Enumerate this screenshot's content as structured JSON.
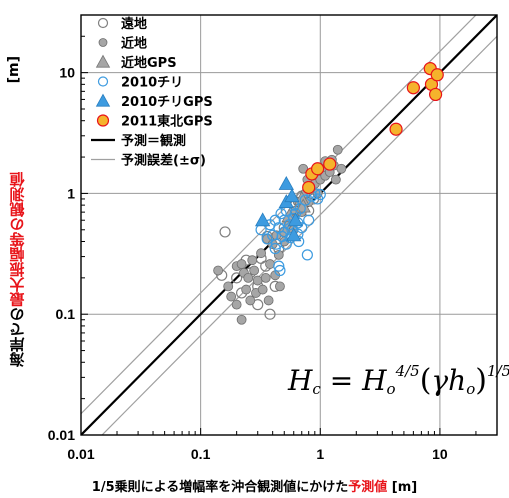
{
  "chart_data": {
    "type": "scatter",
    "scale": "log-log",
    "xlim": [
      0.01,
      30
    ],
    "ylim": [
      0.01,
      30
    ],
    "x_ticks": [
      "0.01",
      "0.1",
      "1",
      "10"
    ],
    "y_ticks": [
      "0.01",
      "0.1",
      "1",
      "10"
    ],
    "y_unit": "[m]",
    "ylabel": {
      "pre": "海岸での",
      "red": "最大振幅等の観測値",
      "post": ""
    },
    "xlabel": {
      "pre": "1/5乗則による増幅率を沖合観測値にかけた",
      "red": "予測値",
      "post": " [m]"
    },
    "formula": {
      "H": "H",
      "c": "c",
      "eq": "=",
      "Ho": "H",
      "o1": "o",
      "e1": "4/5",
      "gamma": "γ",
      "h": "h",
      "o2": "o",
      "e2": "1/5"
    },
    "legend": [
      {
        "key": "far",
        "label": "遠地",
        "marker": "circle-open",
        "color": "#808080"
      },
      {
        "key": "near",
        "label": "近地",
        "marker": "circle-filled",
        "color": "#a6a6a6"
      },
      {
        "key": "near_gps",
        "label": "近地GPS",
        "marker": "triangle",
        "color": "#a6a6a6"
      },
      {
        "key": "chile",
        "label": "2010チリ",
        "marker": "circle-open",
        "color": "#3d9be0"
      },
      {
        "key": "chile_gps",
        "label": "2010チリGPS",
        "marker": "triangle",
        "color": "#3d9be0"
      },
      {
        "key": "tohoku",
        "label": "2011東北GPS",
        "marker": "circle-filled",
        "color": "#f5b32c"
      },
      {
        "key": "line",
        "label": "予測＝観測",
        "marker": "line-thick",
        "color": "#000000"
      },
      {
        "key": "err",
        "label": "予測誤差(±σ)",
        "marker": "line-thin",
        "color": "#a0a0a0"
      }
    ],
    "band_factor": 1.5,
    "series": [
      {
        "key": "far",
        "points": [
          [
            0.16,
            0.48
          ],
          [
            0.15,
            0.21
          ],
          [
            0.2,
            0.2
          ],
          [
            0.22,
            0.15
          ],
          [
            0.24,
            0.28
          ],
          [
            0.26,
            0.22
          ],
          [
            0.3,
            0.12
          ],
          [
            0.3,
            0.17
          ],
          [
            0.32,
            0.29
          ],
          [
            0.35,
            0.25
          ],
          [
            0.36,
            0.44
          ],
          [
            0.38,
            0.1
          ],
          [
            0.42,
            0.17
          ],
          [
            0.45,
            0.35
          ],
          [
            0.5,
            0.52
          ],
          [
            0.55,
            0.6
          ],
          [
            0.62,
            0.8
          ],
          [
            0.7,
            0.95
          ],
          [
            0.8,
            0.72
          ],
          [
            0.88,
            0.9
          ]
        ]
      },
      {
        "key": "near",
        "points": [
          [
            0.14,
            0.23
          ],
          [
            0.17,
            0.17
          ],
          [
            0.18,
            0.14
          ],
          [
            0.2,
            0.12
          ],
          [
            0.2,
            0.25
          ],
          [
            0.22,
            0.09
          ],
          [
            0.22,
            0.26
          ],
          [
            0.23,
            0.22
          ],
          [
            0.24,
            0.16
          ],
          [
            0.25,
            0.2
          ],
          [
            0.26,
            0.13
          ],
          [
            0.27,
            0.28
          ],
          [
            0.28,
            0.23
          ],
          [
            0.29,
            0.15
          ],
          [
            0.3,
            0.19
          ],
          [
            0.32,
            0.32
          ],
          [
            0.33,
            0.16
          ],
          [
            0.35,
            0.2
          ],
          [
            0.36,
            0.42
          ],
          [
            0.37,
            0.13
          ],
          [
            0.38,
            0.26
          ],
          [
            0.4,
            0.38
          ],
          [
            0.42,
            0.21
          ],
          [
            0.43,
            0.45
          ],
          [
            0.45,
            0.31
          ],
          [
            0.46,
            0.17
          ],
          [
            0.5,
            0.48
          ],
          [
            0.5,
            0.4
          ],
          [
            0.55,
            0.55
          ],
          [
            0.58,
            0.62
          ],
          [
            0.6,
            0.5
          ],
          [
            0.62,
            0.72
          ],
          [
            0.65,
            0.85
          ],
          [
            0.7,
            0.7
          ],
          [
            0.72,
            1.6
          ],
          [
            0.75,
            1.0
          ],
          [
            0.78,
            1.3
          ],
          [
            0.8,
            0.85
          ],
          [
            0.82,
            1.1
          ],
          [
            0.88,
            1.5
          ],
          [
            0.9,
            1.2
          ],
          [
            0.95,
            1.0
          ],
          [
            1.0,
            1.3
          ],
          [
            1.05,
            1.6
          ],
          [
            1.1,
            1.4
          ],
          [
            1.2,
            1.5
          ],
          [
            1.3,
            1.7
          ],
          [
            1.35,
            1.3
          ],
          [
            1.4,
            2.3
          ],
          [
            1.5,
            1.6
          ],
          [
            1.1,
            1.85
          ],
          [
            1.25,
            1.9
          ]
        ]
      },
      {
        "key": "near_gps",
        "points": [
          [
            0.55,
            0.65
          ],
          [
            0.7,
            0.9
          ],
          [
            0.72,
            0.78
          ]
        ]
      },
      {
        "key": "chile",
        "points": [
          [
            0.32,
            0.5
          ],
          [
            0.36,
            0.42
          ],
          [
            0.38,
            0.55
          ],
          [
            0.4,
            0.45
          ],
          [
            0.42,
            0.6
          ],
          [
            0.42,
            0.35
          ],
          [
            0.43,
            0.38
          ],
          [
            0.45,
            0.52
          ],
          [
            0.45,
            0.25
          ],
          [
            0.46,
            0.23
          ],
          [
            0.47,
            0.68
          ],
          [
            0.48,
            0.44
          ],
          [
            0.5,
            0.6
          ],
          [
            0.5,
            0.48
          ],
          [
            0.52,
            0.72
          ],
          [
            0.52,
            0.38
          ],
          [
            0.55,
            0.55
          ],
          [
            0.56,
            0.43
          ],
          [
            0.58,
            0.5
          ],
          [
            0.6,
            0.8
          ],
          [
            0.6,
            0.62
          ],
          [
            0.62,
            0.68
          ],
          [
            0.65,
            0.57
          ],
          [
            0.65,
            0.46
          ],
          [
            0.66,
            0.4
          ],
          [
            0.68,
            0.75
          ],
          [
            0.7,
            0.52
          ],
          [
            0.75,
            0.88
          ],
          [
            0.78,
            0.31
          ],
          [
            0.8,
            0.6
          ],
          [
            0.85,
            0.95
          ],
          [
            0.9,
            1.0
          ],
          [
            0.95,
            0.9
          ],
          [
            1.0,
            0.98
          ]
        ]
      },
      {
        "key": "chile_gps",
        "points": [
          [
            0.33,
            0.6
          ],
          [
            0.52,
            0.85
          ],
          [
            0.58,
            0.95
          ],
          [
            0.52,
            1.2
          ],
          [
            0.62,
            0.6
          ],
          [
            0.6,
            0.45
          ]
        ]
      },
      {
        "key": "tohoku",
        "points": [
          [
            0.8,
            1.12
          ],
          [
            0.85,
            1.45
          ],
          [
            0.95,
            1.6
          ],
          [
            1.2,
            1.75
          ],
          [
            4.3,
            3.4
          ],
          [
            6.0,
            7.5
          ],
          [
            8.3,
            10.8
          ],
          [
            8.5,
            8.0
          ],
          [
            9.5,
            9.6
          ],
          [
            9.2,
            6.6
          ]
        ]
      }
    ]
  }
}
